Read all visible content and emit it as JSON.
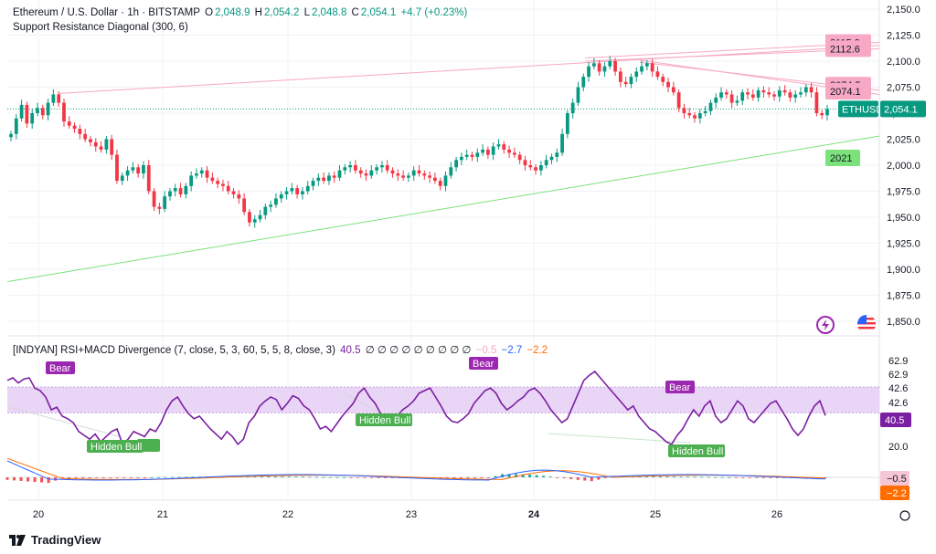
{
  "header": {
    "symbol": "Ethereum / U.S. Dollar · 1h · BITSTAMP",
    "o_label": "O",
    "o": "2,048.9",
    "h_label": "H",
    "h": "2,054.2",
    "l_label": "L",
    "l": "2,048.8",
    "c_label": "C",
    "c": "2,054.1",
    "change": "+4.7 (+0.23%)",
    "indicator": "Support Resistance Diagonal (300, 6)"
  },
  "indicator_header": {
    "name": "[INDYAN] RSI+MACD Divergence (7, close, 5, 3, 60, 5, 5, 8, close, 3)",
    "value": "40.5",
    "placeholders": "∅ ∅ ∅ ∅ ∅ ∅ ∅ ∅ ∅",
    "v1": "−0.5",
    "v2": "−2.7",
    "v3": "−2.2"
  },
  "colors": {
    "up": "#089981",
    "down": "#f23645",
    "resistance": "#f7a8c4",
    "support": "#7be27b",
    "rsi": "#7b1fa2",
    "band": "#e9d5f5",
    "macd": "#2962ff",
    "signal": "#ff6d00",
    "bear_label": "#9c27b0",
    "bull_label": "#4caf50"
  },
  "brand": "TradingView",
  "chart_data": [
    {
      "type": "candlestick",
      "title": "Ethereum / U.S. Dollar · 1h · BITSTAMP",
      "x_ticks": [
        "20",
        "21",
        "22",
        "23",
        "24",
        "25",
        "26"
      ],
      "y_ticks": [
        "2,150.0",
        "2,125.0",
        "2,100.0",
        "2,075.0",
        "2,050.0",
        "2,025.0",
        "2,000.0",
        "1,975.0",
        "1,950.0",
        "1,925.0",
        "1,900.0",
        "1,875.0",
        "1,850.0"
      ],
      "ylim": [
        1843,
        2155
      ],
      "closes": [
        2030,
        2045,
        2058,
        2040,
        2050,
        2055,
        2048,
        2060,
        2068,
        2060,
        2042,
        2038,
        2035,
        2030,
        2025,
        2022,
        2018,
        2015,
        2025,
        2010,
        1985,
        1990,
        1995,
        1998,
        1992,
        2000,
        1975,
        1960,
        1958,
        1970,
        1975,
        1978,
        1972,
        1980,
        1990,
        1992,
        1995,
        1988,
        1985,
        1982,
        1980,
        1975,
        1972,
        1968,
        1955,
        1945,
        1948,
        1952,
        1960,
        1962,
        1968,
        1972,
        1975,
        1978,
        1972,
        1975,
        1980,
        1985,
        1988,
        1985,
        1990,
        1988,
        1995,
        1998,
        2000,
        1995,
        1992,
        1990,
        1995,
        1998,
        2000,
        1995,
        1992,
        1990,
        1988,
        1990,
        1995,
        1992,
        1990,
        1988,
        1985,
        1980,
        1990,
        1998,
        2005,
        2008,
        2010,
        2008,
        2012,
        2015,
        2010,
        2018,
        2020,
        2015,
        2012,
        2010,
        2005,
        2000,
        1998,
        1995,
        2000,
        2005,
        2008,
        2012,
        2030,
        2050,
        2060,
        2075,
        2085,
        2095,
        2098,
        2090,
        2095,
        2100,
        2090,
        2080,
        2078,
        2085,
        2090,
        2095,
        2098,
        2090,
        2085,
        2080,
        2075,
        2070,
        2055,
        2050,
        2048,
        2045,
        2050,
        2052,
        2060,
        2065,
        2070,
        2068,
        2060,
        2062,
        2070,
        2068,
        2065,
        2072,
        2070,
        2068,
        2066,
        2072,
        2070,
        2065,
        2068,
        2070,
        2075,
        2070,
        2050,
        2048,
        2054
      ],
      "support_label": "2021",
      "resistance_labels": [
        "2115.9",
        "2112.6",
        "2074.5",
        "2074.1"
      ],
      "last_price_label": "ETHUSD",
      "last_price": "2,054.1"
    },
    {
      "type": "line",
      "title": "[INDYAN] RSI+MACD Divergence",
      "y_ticks": [
        "62.9",
        "62.9",
        "42.6",
        "42.6",
        "20.0"
      ],
      "rsi": [
        68,
        70,
        66,
        69,
        70,
        62,
        60,
        55,
        45,
        47,
        40,
        38,
        35,
        28,
        25,
        22,
        26,
        20,
        24,
        28,
        30,
        18,
        22,
        28,
        26,
        24,
        30,
        28,
        35,
        45,
        52,
        55,
        48,
        42,
        38,
        40,
        35,
        30,
        26,
        22,
        28,
        24,
        18,
        22,
        35,
        40,
        48,
        52,
        55,
        53,
        45,
        50,
        56,
        54,
        48,
        45,
        38,
        30,
        32,
        28,
        34,
        40,
        45,
        50,
        58,
        62,
        55,
        50,
        42,
        38,
        35,
        40,
        45,
        48,
        52,
        58,
        60,
        62,
        55,
        48,
        40,
        36,
        35,
        38,
        42,
        50,
        55,
        60,
        62,
        58,
        50,
        45,
        48,
        52,
        55,
        60,
        62,
        58,
        52,
        45,
        40,
        35,
        38,
        48,
        58,
        68,
        72,
        75,
        70,
        65,
        60,
        55,
        50,
        45,
        48,
        40,
        35,
        30,
        28,
        24,
        20,
        18,
        25,
        30,
        38,
        45,
        40,
        48,
        52,
        40,
        35,
        38,
        45,
        52,
        48,
        38,
        35,
        40,
        45,
        50,
        52,
        45,
        38,
        30,
        25,
        30,
        40,
        48,
        52,
        40.5
      ],
      "band": [
        42.6,
        62.9
      ],
      "divergence_labels": [
        "Bear",
        "Bear",
        "Bear",
        "Hidden Bull",
        "Hidden Bull",
        "Hidden Bull"
      ],
      "macd_values": [
        "−0.5",
        "−2.2"
      ]
    }
  ]
}
